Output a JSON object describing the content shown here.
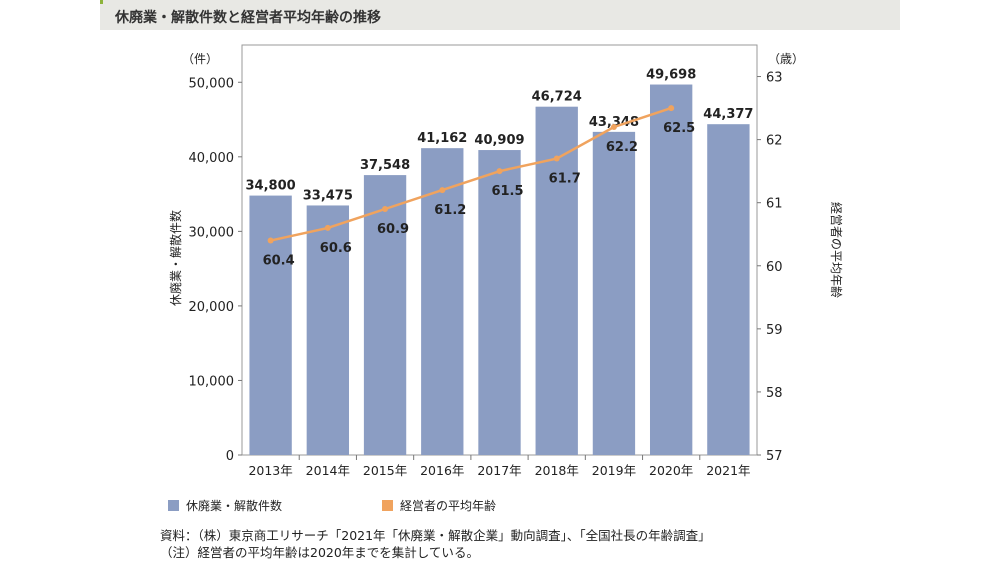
{
  "header": {
    "title": "休廃業・解散件数と経営者平均年齢の推移"
  },
  "chart_data": {
    "type": "bar",
    "categories": [
      "2013年",
      "2014年",
      "2015年",
      "2016年",
      "2017年",
      "2018年",
      "2019年",
      "2020年",
      "2021年"
    ],
    "series": [
      {
        "name": "休廃業・解散件数",
        "type": "bar",
        "axis": "left",
        "values": [
          34800,
          33475,
          37548,
          41162,
          40909,
          46724,
          43348,
          49698,
          44377
        ],
        "labels": [
          "34,800",
          "33,475",
          "37,548",
          "41,162",
          "40,909",
          "46,724",
          "43,348",
          "49,698",
          "44,377"
        ],
        "color": "#8b9dc3"
      },
      {
        "name": "経営者の平均年齢",
        "type": "line",
        "axis": "right",
        "values": [
          60.4,
          60.6,
          60.9,
          61.2,
          61.5,
          61.7,
          62.2,
          62.5,
          null
        ],
        "labels": [
          "60.4",
          "60.6",
          "60.9",
          "61.2",
          "61.5",
          "61.7",
          "62.2",
          "62.5",
          ""
        ],
        "color": "#f0a35e"
      }
    ],
    "ylabel": "休廃業・解散件数",
    "ylabel_right": "経営者の平均年齢",
    "yunit_left": "（件）",
    "yunit_right": "（歳）",
    "ylim": [
      0,
      55000
    ],
    "yticks": [
      0,
      10000,
      20000,
      30000,
      40000,
      50000
    ],
    "yticklabels": [
      "0",
      "10,000",
      "20,000",
      "30,000",
      "40,000",
      "50,000"
    ],
    "ylim_right": [
      57,
      63.5
    ],
    "yticks_right": [
      57,
      58,
      59,
      60,
      61,
      62,
      63
    ],
    "grid": false,
    "legend_position": "bottom-left"
  },
  "legend": {
    "bar_label": "休廃業・解散件数",
    "line_label": "経営者の平均年齢"
  },
  "notes": {
    "source": "資料：（株）東京商工リサーチ「2021年「休廃業・解散企業」動向調査」、「全国社長の年齢調査」",
    "note": "（注）経営者の平均年齢は2020年までを集計している。"
  }
}
